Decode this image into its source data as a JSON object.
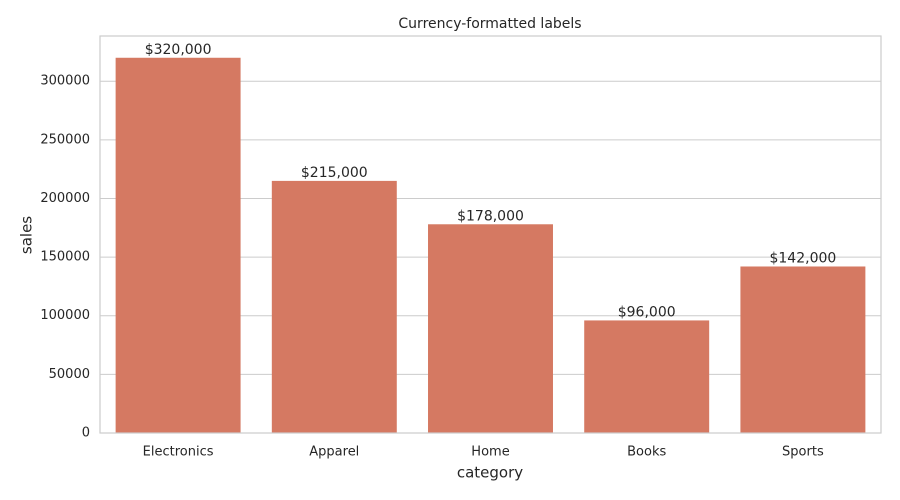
{
  "chart_data": {
    "type": "bar",
    "title": "Currency-formatted labels",
    "x_label": "category",
    "y_label": "sales",
    "categories": [
      "Electronics",
      "Apparel",
      "Home",
      "Books",
      "Sports"
    ],
    "values": [
      320000,
      215000,
      178000,
      96000,
      142000
    ],
    "value_labels": [
      "$320,000",
      "$215,000",
      "$178,000",
      "$96,000",
      "$142,000"
    ],
    "color": "#d57962",
    "ylim": [
      0,
      336000
    ],
    "yticks": [
      0,
      50000,
      100000,
      150000,
      200000,
      250000,
      300000
    ],
    "grid": true
  }
}
